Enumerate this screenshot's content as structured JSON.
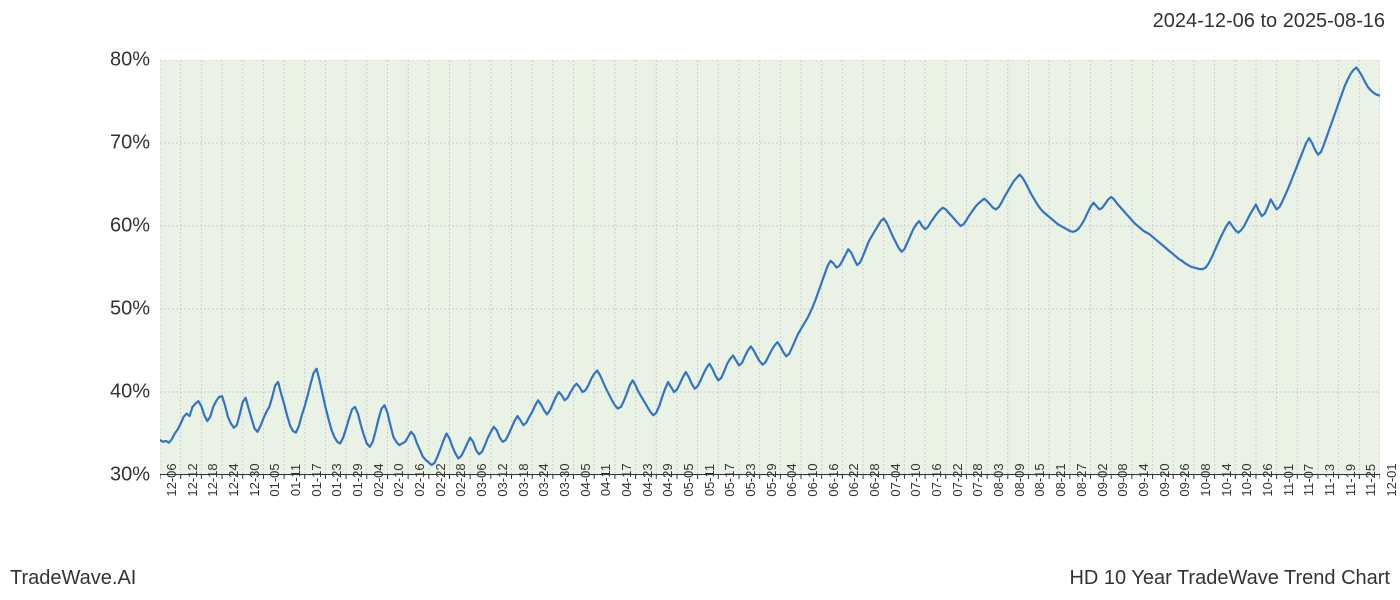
{
  "date_range_text": "2024-12-06 to 2025-08-16",
  "footer_left": "TradeWave.AI",
  "footer_right": "HD 10 Year TradeWave Trend Chart",
  "chart": {
    "type": "line",
    "background_color": "#ffffff",
    "line_color": "#3273c4",
    "line_width": 2.2,
    "grid_color": "#cccccc",
    "grid_dash": "2,2",
    "axis_color": "#333333",
    "highlight_fill": "#d9e8d2",
    "highlight_opacity": 0.55,
    "highlight_start_x": "12-06",
    "highlight_end_x": "08-16",
    "ylim": [
      30,
      80
    ],
    "yticks": [
      30,
      40,
      50,
      60,
      70,
      80
    ],
    "ytick_suffix": "%",
    "tick_fontsize": 20,
    "xtick_fontsize": 13,
    "xtick_rotation": -90,
    "xticks": [
      "12-06",
      "12-12",
      "12-18",
      "12-24",
      "12-30",
      "01-05",
      "01-11",
      "01-17",
      "01-23",
      "01-29",
      "02-04",
      "02-10",
      "02-16",
      "02-22",
      "02-28",
      "03-06",
      "03-12",
      "03-18",
      "03-24",
      "03-30",
      "04-05",
      "04-11",
      "04-17",
      "04-23",
      "04-29",
      "05-05",
      "05-11",
      "05-17",
      "05-23",
      "05-29",
      "06-04",
      "06-10",
      "06-16",
      "06-22",
      "06-28",
      "07-04",
      "07-10",
      "07-16",
      "07-22",
      "07-28",
      "08-03",
      "08-09",
      "08-15",
      "08-21",
      "08-27",
      "09-02",
      "09-08",
      "09-14",
      "09-20",
      "09-26",
      "10-08",
      "10-14",
      "10-20",
      "10-26",
      "11-01",
      "11-07",
      "11-13",
      "11-19",
      "11-25",
      "12-01"
    ],
    "series": [
      34.2,
      34.0,
      34.1,
      33.9,
      34.3,
      35.0,
      35.5,
      36.2,
      37.0,
      37.4,
      37.1,
      38.2,
      38.6,
      38.9,
      38.3,
      37.2,
      36.5,
      37.0,
      38.2,
      38.9,
      39.4,
      39.5,
      38.4,
      37.0,
      36.2,
      35.7,
      36.0,
      37.3,
      38.8,
      39.3,
      38.0,
      36.8,
      35.6,
      35.2,
      35.9,
      36.8,
      37.6,
      38.2,
      39.4,
      40.8,
      41.2,
      39.8,
      38.6,
      37.2,
      36.0,
      35.3,
      35.1,
      35.9,
      37.2,
      38.3,
      39.6,
      41.0,
      42.3,
      42.8,
      41.4,
      39.8,
      38.2,
      36.8,
      35.5,
      34.6,
      34.0,
      33.8,
      34.5,
      35.6,
      36.8,
      37.9,
      38.2,
      37.4,
      36.0,
      34.8,
      33.8,
      33.4,
      34.0,
      35.3,
      36.8,
      38.0,
      38.4,
      37.5,
      36.0,
      34.6,
      34.0,
      33.6,
      33.8,
      34.0,
      34.6,
      35.2,
      34.8,
      33.8,
      33.0,
      32.2,
      31.8,
      31.5,
      31.2,
      31.5,
      32.3,
      33.2,
      34.2,
      35.0,
      34.4,
      33.4,
      32.6,
      32.0,
      32.3,
      33.0,
      33.8,
      34.5,
      34.0,
      33.0,
      32.5,
      32.8,
      33.6,
      34.5,
      35.2,
      35.8,
      35.4,
      34.5,
      34.0,
      34.2,
      34.9,
      35.7,
      36.5,
      37.1,
      36.6,
      36.0,
      36.3,
      37.0,
      37.6,
      38.4,
      39.0,
      38.5,
      37.8,
      37.3,
      37.8,
      38.6,
      39.4,
      40.0,
      39.6,
      39.0,
      39.3,
      40.0,
      40.6,
      41.0,
      40.6,
      40.0,
      40.2,
      40.8,
      41.6,
      42.2,
      42.6,
      42.0,
      41.2,
      40.4,
      39.7,
      39.0,
      38.4,
      38.0,
      38.2,
      38.9,
      39.8,
      40.8,
      41.4,
      40.8,
      40.0,
      39.4,
      38.8,
      38.2,
      37.6,
      37.2,
      37.5,
      38.3,
      39.4,
      40.4,
      41.2,
      40.6,
      40.0,
      40.3,
      41.0,
      41.8,
      42.4,
      41.8,
      41.0,
      40.4,
      40.7,
      41.4,
      42.2,
      42.9,
      43.4,
      42.8,
      42.0,
      41.4,
      41.7,
      42.5,
      43.4,
      44.0,
      44.4,
      43.8,
      43.2,
      43.5,
      44.3,
      45.0,
      45.5,
      45.0,
      44.3,
      43.7,
      43.3,
      43.6,
      44.3,
      45.0,
      45.6,
      46.0,
      45.5,
      44.8,
      44.3,
      44.6,
      45.4,
      46.2,
      47.0,
      47.6,
      48.2,
      48.8,
      49.5,
      50.3,
      51.2,
      52.2,
      53.2,
      54.2,
      55.2,
      55.8,
      55.5,
      55.0,
      55.2,
      55.8,
      56.5,
      57.2,
      56.8,
      56.0,
      55.3,
      55.6,
      56.4,
      57.3,
      58.2,
      58.8,
      59.4,
      60.0,
      60.6,
      60.9,
      60.4,
      59.6,
      58.8,
      58.1,
      57.4,
      56.9,
      57.2,
      58.0,
      58.8,
      59.6,
      60.2,
      60.6,
      60.0,
      59.6,
      59.9,
      60.5,
      61.0,
      61.5,
      61.9,
      62.2,
      62.0,
      61.6,
      61.2,
      60.8,
      60.4,
      60.0,
      60.2,
      60.7,
      61.3,
      61.8,
      62.3,
      62.7,
      63.0,
      63.3,
      63.0,
      62.6,
      62.2,
      62.0,
      62.3,
      62.9,
      63.6,
      64.2,
      64.8,
      65.4,
      65.8,
      66.2,
      65.8,
      65.2,
      64.5,
      63.8,
      63.2,
      62.6,
      62.1,
      61.7,
      61.4,
      61.1,
      60.8,
      60.5,
      60.2,
      60.0,
      59.8,
      59.6,
      59.4,
      59.3,
      59.4,
      59.7,
      60.2,
      60.8,
      61.6,
      62.3,
      62.8,
      62.4,
      62.0,
      62.2,
      62.7,
      63.2,
      63.5,
      63.2,
      62.7,
      62.3,
      61.9,
      61.5,
      61.1,
      60.7,
      60.3,
      60.0,
      59.7,
      59.4,
      59.2,
      59.0,
      58.7,
      58.4,
      58.1,
      57.8,
      57.5,
      57.2,
      56.9,
      56.6,
      56.3,
      56.0,
      55.8,
      55.5,
      55.3,
      55.1,
      55.0,
      54.9,
      54.8,
      54.8,
      55.0,
      55.5,
      56.2,
      57.0,
      57.8,
      58.6,
      59.3,
      60.0,
      60.5,
      60.0,
      59.5,
      59.2,
      59.5,
      60.0,
      60.7,
      61.4,
      62.0,
      62.6,
      61.8,
      61.2,
      61.5,
      62.3,
      63.2,
      62.6,
      62.0,
      62.3,
      63.0,
      63.8,
      64.6,
      65.5,
      66.4,
      67.3,
      68.2,
      69.1,
      70.0,
      70.6,
      70.0,
      69.2,
      68.6,
      68.9,
      69.8,
      70.8,
      71.8,
      72.8,
      73.8,
      74.8,
      75.8,
      76.8,
      77.6,
      78.3,
      78.8,
      79.1,
      78.6,
      78.0,
      77.3,
      76.7,
      76.3,
      76.0,
      75.8,
      75.7
    ]
  }
}
